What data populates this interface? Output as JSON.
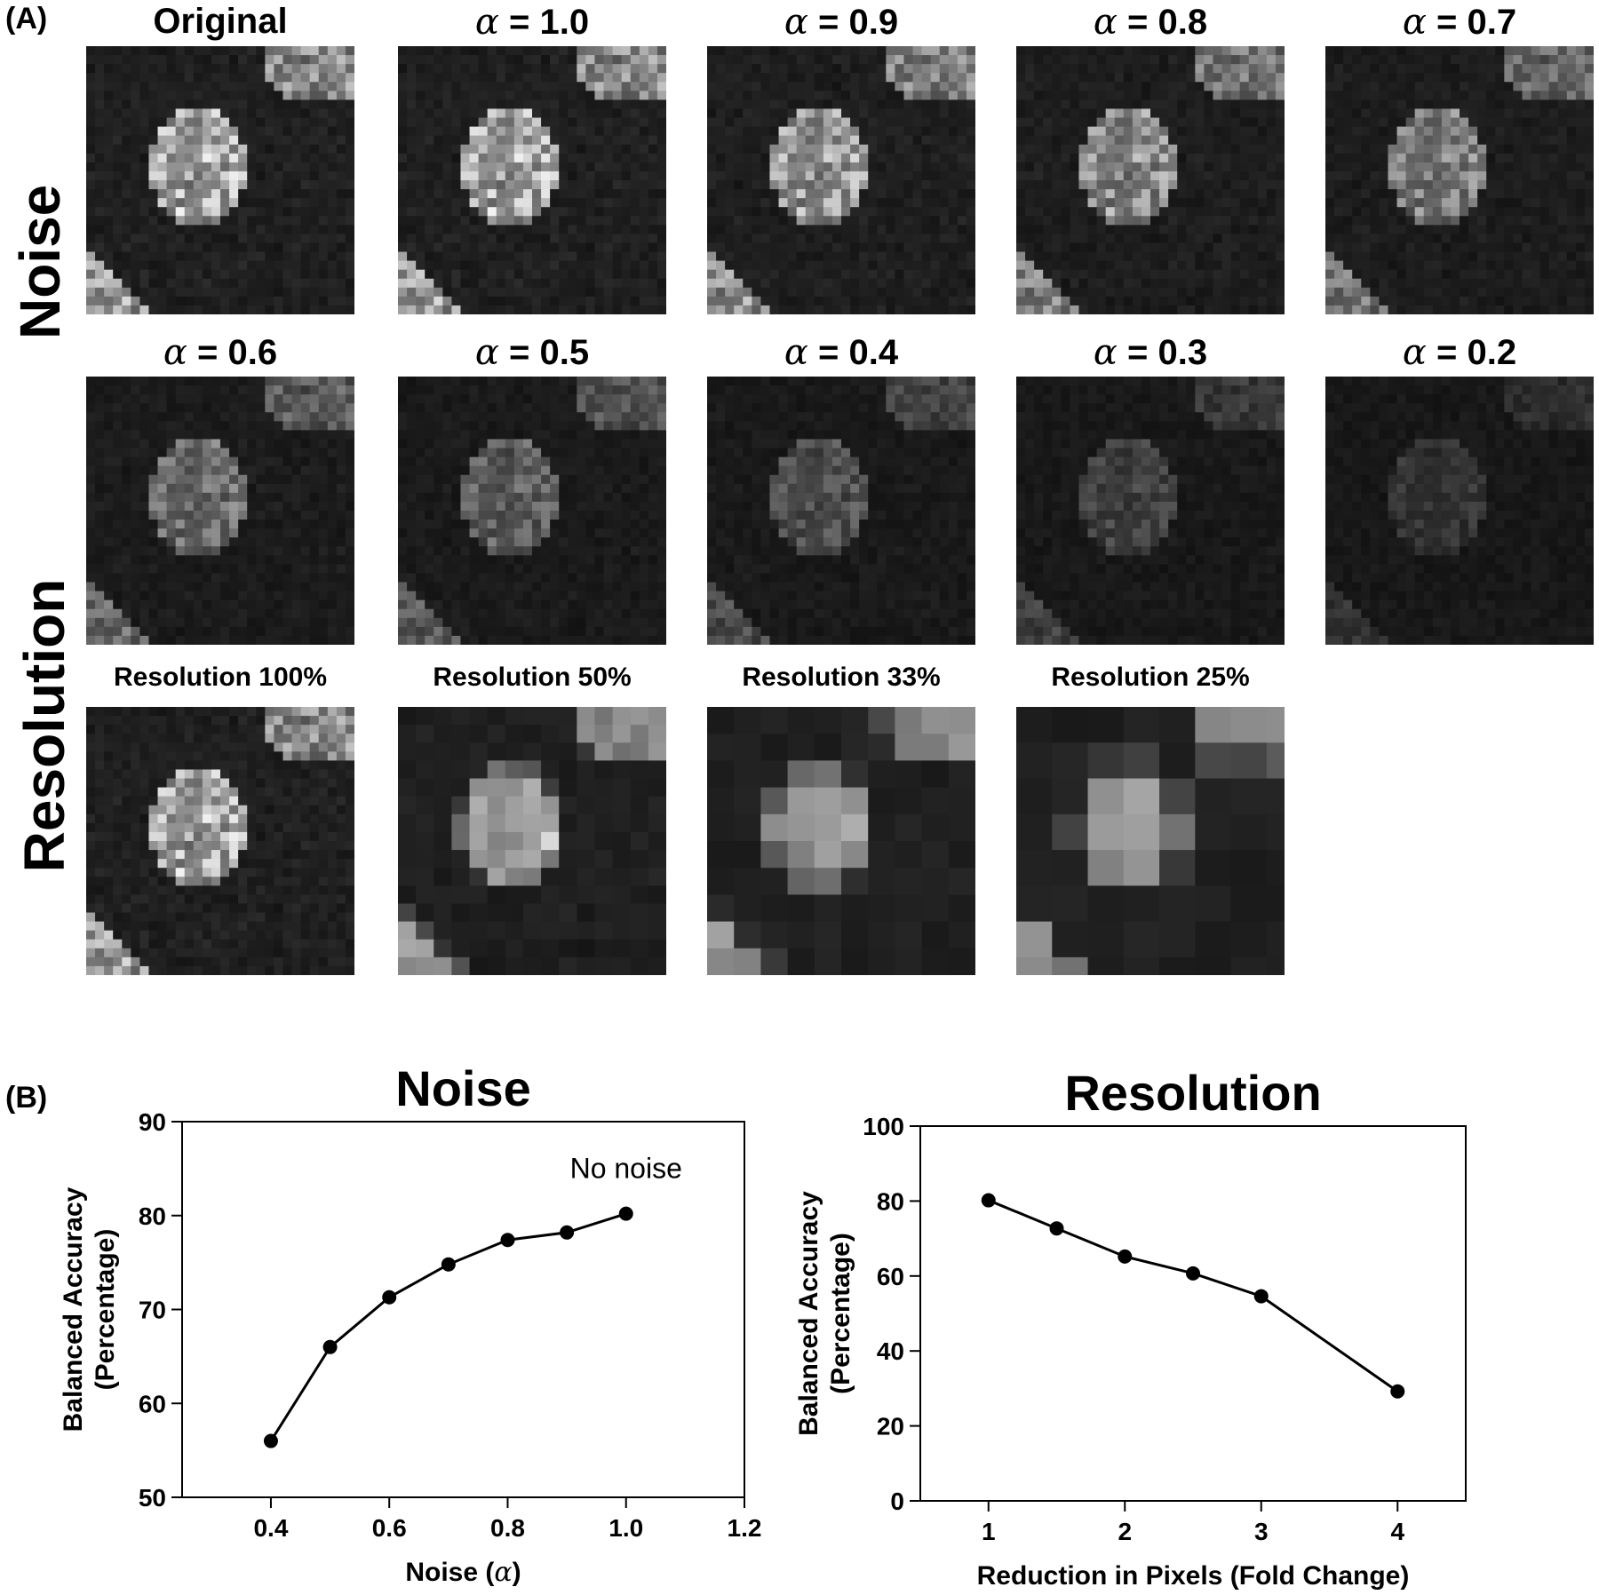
{
  "panel_a": {
    "label": "(A)",
    "row_labels": {
      "noise": "Noise",
      "resolution": "Resolution"
    },
    "noise_tiles": [
      {
        "kind": "text",
        "title": "Original",
        "level": 1.0
      },
      {
        "kind": "alpha",
        "sym": "α",
        "value": "= 1.0",
        "level": 1.0
      },
      {
        "kind": "alpha",
        "sym": "α",
        "value": "= 0.9",
        "level": 0.9
      },
      {
        "kind": "alpha",
        "sym": "α",
        "value": "= 0.8",
        "level": 0.8
      },
      {
        "kind": "alpha",
        "sym": "α",
        "value": "= 0.7",
        "level": 0.7
      },
      {
        "kind": "alpha",
        "sym": "α",
        "value": "= 0.6",
        "level": 0.6
      },
      {
        "kind": "alpha",
        "sym": "α",
        "value": "= 0.5",
        "level": 0.5
      },
      {
        "kind": "alpha",
        "sym": "α",
        "value": "= 0.4",
        "level": 0.4
      },
      {
        "kind": "alpha",
        "sym": "α",
        "value": "= 0.3",
        "level": 0.3
      },
      {
        "kind": "alpha",
        "sym": "α",
        "value": "= 0.2",
        "level": 0.2
      }
    ],
    "resolution_tiles": [
      {
        "title": "Resolution 100%",
        "blocks": 1
      },
      {
        "title": "Resolution 50%",
        "blocks": 2
      },
      {
        "title": "Resolution 33%",
        "blocks": 3
      },
      {
        "title": "Resolution 25%",
        "blocks": 4
      }
    ]
  },
  "panel_b": {
    "label": "(B)"
  },
  "chart_data": [
    {
      "type": "line",
      "title": "Noise",
      "xlabel_text": "Noise (",
      "xlabel_sym": "α",
      "xlabel_end": ")",
      "ylabel": [
        "Balanced Accuracy",
        "(Percentage)"
      ],
      "x": [
        0.4,
        0.5,
        0.6,
        0.7,
        0.8,
        0.9,
        1.0
      ],
      "y": [
        56,
        66,
        71.3,
        74.8,
        77.4,
        78.2,
        80.2
      ],
      "xlim": [
        0.25,
        1.2
      ],
      "ylim": [
        50,
        90
      ],
      "xticks": [
        "0.4",
        "0.6",
        "0.8",
        "1.0",
        "1.2"
      ],
      "yticks": [
        "50",
        "60",
        "70",
        "80",
        "90"
      ],
      "annotation": {
        "text": "No noise",
        "x": 1.0,
        "y": 80.2
      }
    },
    {
      "type": "line",
      "title": "Resolution",
      "xlabel": "Reduction in Pixels (Fold Change)",
      "ylabel": [
        "Balanced Accuracy",
        "(Percentage)"
      ],
      "x": [
        1,
        1.5,
        2,
        2.5,
        3,
        4
      ],
      "y": [
        80.2,
        72.7,
        65.2,
        60.7,
        54.6,
        29.2
      ],
      "xlim": [
        0.5,
        4.5
      ],
      "ylim": [
        0,
        100
      ],
      "xticks": [
        "1",
        "2",
        "3",
        "4"
      ],
      "yticks": [
        "0",
        "20",
        "40",
        "60",
        "80",
        "100"
      ]
    }
  ]
}
